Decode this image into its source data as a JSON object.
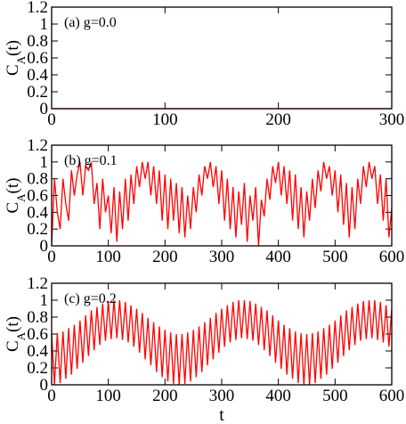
{
  "chart_data": [
    {
      "type": "line",
      "label": "(a) g=0.0",
      "ylabel": [
        "C",
        "A",
        "(t)"
      ],
      "x": [
        0,
        300
      ],
      "series": [
        {
          "color": "#ff0000",
          "values": [
            0,
            0
          ]
        }
      ],
      "xlim": [
        0,
        300
      ],
      "xticks": [
        0,
        100,
        200,
        300
      ],
      "ylim": [
        0,
        1.2
      ],
      "yticks": [
        0,
        0.2,
        0.4,
        0.6,
        0.8,
        1,
        1.2
      ]
    },
    {
      "type": "line",
      "label": "(b) g=0.1",
      "ylabel": [
        "C",
        "A",
        "(t)"
      ],
      "x": [
        0,
        5,
        10,
        15,
        20,
        25,
        30,
        35,
        40,
        45,
        50,
        55,
        60,
        65,
        70,
        75,
        80,
        85,
        90,
        95,
        100,
        105,
        110,
        115,
        120,
        125,
        130,
        135,
        140,
        145,
        150,
        155,
        160,
        165,
        170,
        175,
        180,
        185,
        190,
        195,
        200,
        205,
        210,
        215,
        220,
        225,
        230,
        235,
        240,
        245,
        250,
        255,
        260,
        265,
        270,
        275,
        280,
        285,
        290,
        295,
        300,
        305,
        310,
        315,
        320,
        325,
        330,
        335,
        340,
        345,
        350,
        355,
        360,
        365,
        370,
        375,
        380,
        385,
        390,
        395,
        400,
        405,
        410,
        415,
        420,
        425,
        430,
        435,
        440,
        445,
        450,
        455,
        460,
        465,
        470,
        475,
        480,
        485,
        490,
        495,
        500,
        505,
        510,
        515,
        520,
        525,
        530,
        535,
        540,
        545,
        550,
        555,
        560,
        565,
        570,
        575,
        580,
        585,
        590,
        595,
        600
      ],
      "series": [
        {
          "color": "#ff0000",
          "values": [
            0.0,
            0.8,
            0.4,
            0.2,
            0.8,
            0.5,
            0.3,
            0.9,
            0.6,
            0.85,
            1.0,
            0.6,
            0.95,
            0.9,
            1.0,
            0.5,
            0.75,
            0.2,
            0.8,
            0.4,
            0.6,
            0.15,
            0.7,
            0.05,
            0.65,
            0.2,
            0.8,
            0.3,
            0.85,
            0.5,
            0.95,
            0.7,
            1.0,
            0.8,
            1.0,
            0.6,
            0.95,
            0.5,
            0.9,
            0.3,
            0.85,
            0.2,
            0.8,
            0.3,
            0.75,
            0.15,
            0.7,
            0.1,
            0.6,
            0.2,
            0.7,
            0.4,
            0.85,
            0.6,
            0.95,
            0.8,
            1.0,
            0.7,
            0.95,
            0.5,
            0.9,
            0.3,
            0.8,
            0.2,
            0.7,
            0.1,
            0.65,
            0.25,
            0.75,
            0.05,
            0.6,
            0.3,
            0.7,
            0.0,
            0.55,
            0.35,
            0.8,
            0.55,
            0.95,
            0.75,
            1.0,
            0.6,
            0.95,
            0.5,
            0.9,
            0.3,
            0.85,
            0.2,
            0.7,
            0.1,
            0.65,
            0.3,
            0.8,
            0.45,
            0.9,
            0.65,
            1.0,
            0.8,
            0.95,
            0.6,
            0.9,
            0.4,
            0.85,
            0.25,
            0.75,
            0.1,
            0.7,
            0.2,
            0.8,
            0.5,
            0.95,
            0.7,
            1.0,
            0.8,
            0.95,
            0.5,
            0.85,
            0.3,
            0.8,
            0.1,
            0.45
          ]
        }
      ],
      "xlim": [
        0,
        600
      ],
      "xticks": [
        0,
        100,
        200,
        300,
        400,
        500,
        600
      ],
      "ylim": [
        0,
        1.2
      ],
      "yticks": [
        0,
        0.2,
        0.4,
        0.6,
        0.8,
        1,
        1.2
      ]
    },
    {
      "type": "line",
      "label": "(c) g=0.2",
      "ylabel": [
        "C",
        "A",
        "(t)"
      ],
      "xlabel": "t",
      "x": [
        0,
        5,
        10,
        15,
        20,
        25,
        30,
        35,
        40,
        45,
        50,
        55,
        60,
        65,
        70,
        75,
        80,
        85,
        90,
        95,
        100,
        105,
        110,
        115,
        120,
        125,
        130,
        135,
        140,
        145,
        150,
        155,
        160,
        165,
        170,
        175,
        180,
        185,
        190,
        195,
        200,
        205,
        210,
        215,
        220,
        225,
        230,
        235,
        240,
        245,
        250,
        255,
        260,
        265,
        270,
        275,
        280,
        285,
        290,
        295,
        300,
        305,
        310,
        315,
        320,
        325,
        330,
        335,
        340,
        345,
        350,
        355,
        360,
        365,
        370,
        375,
        380,
        385,
        390,
        395,
        400,
        405,
        410,
        415,
        420,
        425,
        430,
        435,
        440,
        445,
        450,
        455,
        460,
        465,
        470,
        475,
        480,
        485,
        490,
        495,
        500,
        505,
        510,
        515,
        520,
        525,
        530,
        535,
        540,
        545,
        550,
        555,
        560,
        565,
        570,
        575,
        580,
        585,
        590,
        595,
        600
      ],
      "series": [
        {
          "color": "#ff0000",
          "values": [
            0.6,
            0.0,
            0.61,
            0.02,
            0.63,
            0.07,
            0.67,
            0.12,
            0.71,
            0.19,
            0.76,
            0.26,
            0.82,
            0.34,
            0.88,
            0.41,
            0.92,
            0.47,
            0.96,
            0.52,
            0.99,
            0.54,
            1.0,
            0.55,
            1.0,
            0.53,
            0.98,
            0.5,
            0.94,
            0.45,
            0.9,
            0.38,
            0.85,
            0.3,
            0.79,
            0.23,
            0.74,
            0.15,
            0.69,
            0.09,
            0.65,
            0.04,
            0.62,
            0.01,
            0.6,
            0.0,
            0.6,
            0.01,
            0.62,
            0.04,
            0.65,
            0.09,
            0.69,
            0.15,
            0.74,
            0.23,
            0.79,
            0.3,
            0.85,
            0.38,
            0.9,
            0.45,
            0.94,
            0.5,
            0.98,
            0.53,
            1.0,
            0.55,
            1.0,
            0.54,
            0.99,
            0.52,
            0.96,
            0.47,
            0.92,
            0.41,
            0.88,
            0.34,
            0.82,
            0.26,
            0.76,
            0.19,
            0.71,
            0.12,
            0.67,
            0.07,
            0.63,
            0.02,
            0.61,
            0.0,
            0.6,
            0.0,
            0.61,
            0.02,
            0.63,
            0.07,
            0.67,
            0.12,
            0.71,
            0.19,
            0.76,
            0.26,
            0.82,
            0.34,
            0.88,
            0.41,
            0.92,
            0.47,
            0.96,
            0.52,
            0.99,
            0.54,
            1.0,
            0.55,
            1.0,
            0.53,
            0.98,
            0.5,
            0.94,
            0.45,
            0.9
          ]
        }
      ],
      "xlim": [
        0,
        600
      ],
      "xticks": [
        0,
        100,
        200,
        300,
        400,
        500,
        600
      ],
      "ylim": [
        0,
        1.2
      ],
      "yticks": [
        0,
        0.2,
        0.4,
        0.6,
        0.8,
        1,
        1.2
      ]
    }
  ]
}
